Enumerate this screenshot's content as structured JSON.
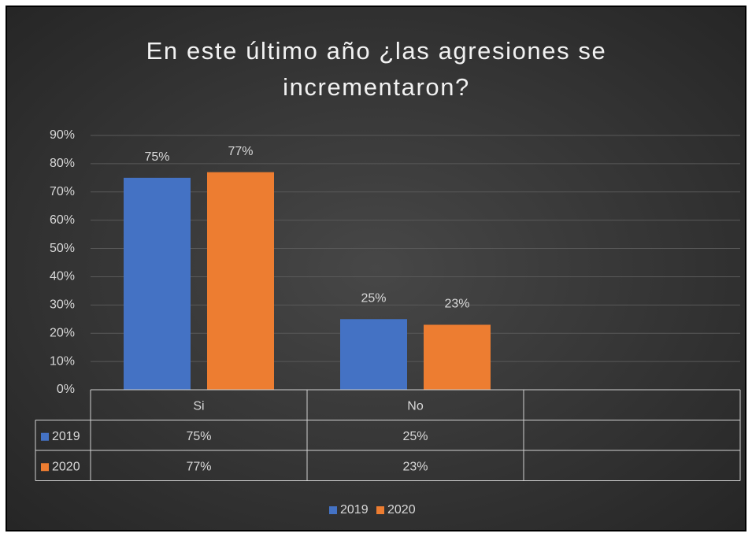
{
  "chart_data": {
    "type": "bar",
    "title": "En este último año ¿las agresiones se incrementaron?",
    "categories": [
      "Si",
      "No",
      null
    ],
    "series": [
      {
        "name": "2019",
        "color": "#4472c4",
        "values": [
          75,
          25,
          null
        ],
        "value_labels": [
          "75%",
          "25%",
          null
        ]
      },
      {
        "name": "2020",
        "color": "#ed7d31",
        "values": [
          77,
          23,
          null
        ],
        "value_labels": [
          "77%",
          "23%",
          null
        ]
      }
    ],
    "ylim": [
      0,
      90
    ],
    "yticks": [
      {
        "value": 0,
        "label": "0%"
      },
      {
        "value": 10,
        "label": "10%"
      },
      {
        "value": 20,
        "label": "20%"
      },
      {
        "value": 30,
        "label": "30%"
      },
      {
        "value": 40,
        "label": "40%"
      },
      {
        "value": 50,
        "label": "50%"
      },
      {
        "value": 60,
        "label": "60%"
      },
      {
        "value": 70,
        "label": "70%"
      },
      {
        "value": 80,
        "label": "80%"
      },
      {
        "value": 90,
        "label": "90%"
      }
    ],
    "grid": true,
    "data_table": true,
    "legend": "bottom"
  }
}
